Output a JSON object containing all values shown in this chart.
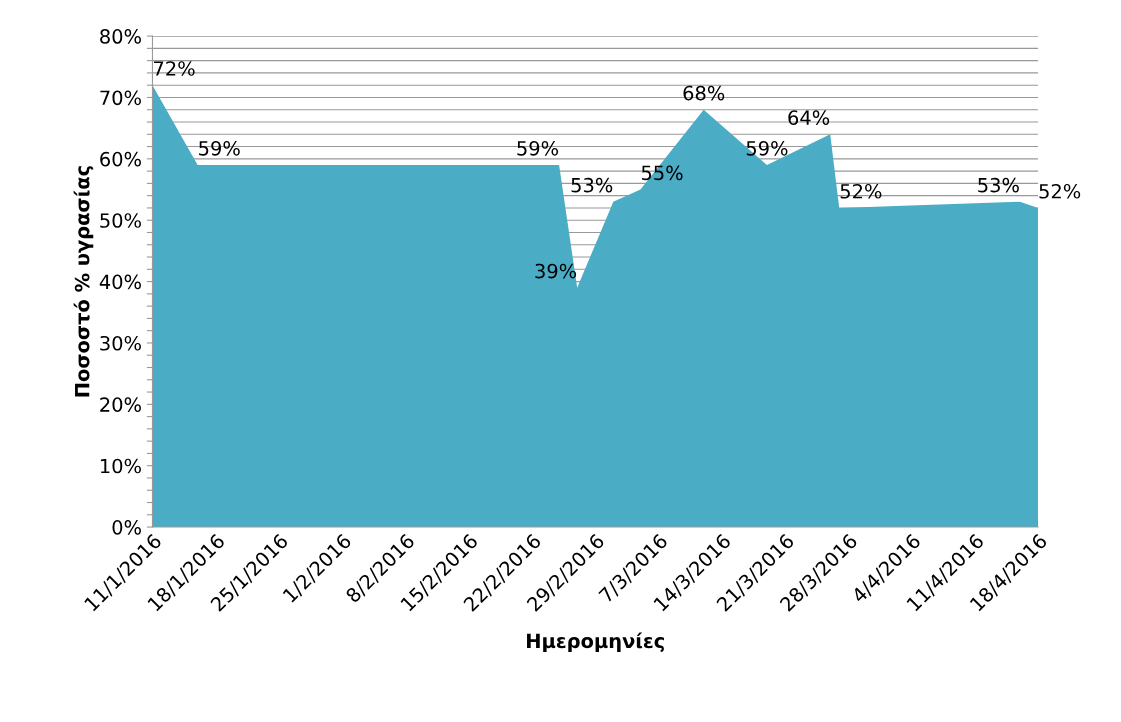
{
  "chart_data": {
    "type": "area",
    "xlabel": "Ημερομηνίες",
    "ylabel": "Ποσοστό % υγρασίας",
    "x": [
      "2016-01-11",
      "2016-01-16",
      "2016-02-25",
      "2016-02-27",
      "2016-03-02",
      "2016-03-05",
      "2016-03-12",
      "2016-03-19",
      "2016-03-26",
      "2016-03-27",
      "2016-04-16",
      "2016-04-18"
    ],
    "series": [
      {
        "color": "#4bacc6",
        "values": [
          72,
          59,
          59,
          39,
          53,
          55,
          68,
          59,
          64,
          52,
          53,
          52
        ],
        "value_labels": [
          "72%",
          "59%",
          "59%",
          "39%",
          "53%",
          "55%",
          "68%",
          "59%",
          "64%",
          "52%",
          "53%",
          "52%"
        ]
      }
    ],
    "xlim": [
      "2016-01-11",
      "2016-04-18"
    ],
    "xticks": [
      {
        "value": "2016-01-11",
        "label": "11/1/2016"
      },
      {
        "value": "2016-01-18",
        "label": "18/1/2016"
      },
      {
        "value": "2016-01-25",
        "label": "25/1/2016"
      },
      {
        "value": "2016-02-01",
        "label": "1/2/2016"
      },
      {
        "value": "2016-02-08",
        "label": "8/2/2016"
      },
      {
        "value": "2016-02-15",
        "label": "15/2/2016"
      },
      {
        "value": "2016-02-22",
        "label": "22/2/2016"
      },
      {
        "value": "2016-02-29",
        "label": "29/2/2016"
      },
      {
        "value": "2016-03-07",
        "label": "7/3/2016"
      },
      {
        "value": "2016-03-14",
        "label": "14/3/2016"
      },
      {
        "value": "2016-03-21",
        "label": "21/3/2016"
      },
      {
        "value": "2016-03-28",
        "label": "28/3/2016"
      },
      {
        "value": "2016-04-04",
        "label": "4/4/2016"
      },
      {
        "value": "2016-04-11",
        "label": "11/4/2016"
      },
      {
        "value": "2016-04-18",
        "label": "18/4/2016"
      }
    ],
    "ylim": [
      0,
      80
    ],
    "yticks": [
      {
        "value": 0,
        "label": "0%"
      },
      {
        "value": 2,
        "label": null
      },
      {
        "value": 4,
        "label": null
      },
      {
        "value": 6,
        "label": null
      },
      {
        "value": 8,
        "label": null
      },
      {
        "value": 10,
        "label": "10%"
      },
      {
        "value": 12,
        "label": null
      },
      {
        "value": 14,
        "label": null
      },
      {
        "value": 16,
        "label": null
      },
      {
        "value": 18,
        "label": null
      },
      {
        "value": 20,
        "label": "20%"
      },
      {
        "value": 22,
        "label": null
      },
      {
        "value": 24,
        "label": null
      },
      {
        "value": 26,
        "label": null
      },
      {
        "value": 28,
        "label": null
      },
      {
        "value": 30,
        "label": "30%"
      },
      {
        "value": 32,
        "label": null
      },
      {
        "value": 34,
        "label": null
      },
      {
        "value": 36,
        "label": null
      },
      {
        "value": 38,
        "label": null
      },
      {
        "value": 40,
        "label": "40%"
      },
      {
        "value": 42,
        "label": null
      },
      {
        "value": 44,
        "label": null
      },
      {
        "value": 46,
        "label": null
      },
      {
        "value": 48,
        "label": null
      },
      {
        "value": 50,
        "label": "50%"
      },
      {
        "value": 52,
        "label": null
      },
      {
        "value": 54,
        "label": null
      },
      {
        "value": 56,
        "label": null
      },
      {
        "value": 58,
        "label": null
      },
      {
        "value": 60,
        "label": "60%"
      },
      {
        "value": 62,
        "label": null
      },
      {
        "value": 64,
        "label": null
      },
      {
        "value": 66,
        "label": null
      },
      {
        "value": 68,
        "label": null
      },
      {
        "value": 70,
        "label": "70%"
      },
      {
        "value": 72,
        "label": null
      },
      {
        "value": 74,
        "label": null
      },
      {
        "value": 76,
        "label": null
      },
      {
        "value": 78,
        "label": null
      },
      {
        "value": 80,
        "label": "80%"
      }
    ],
    "grid": "y"
  }
}
